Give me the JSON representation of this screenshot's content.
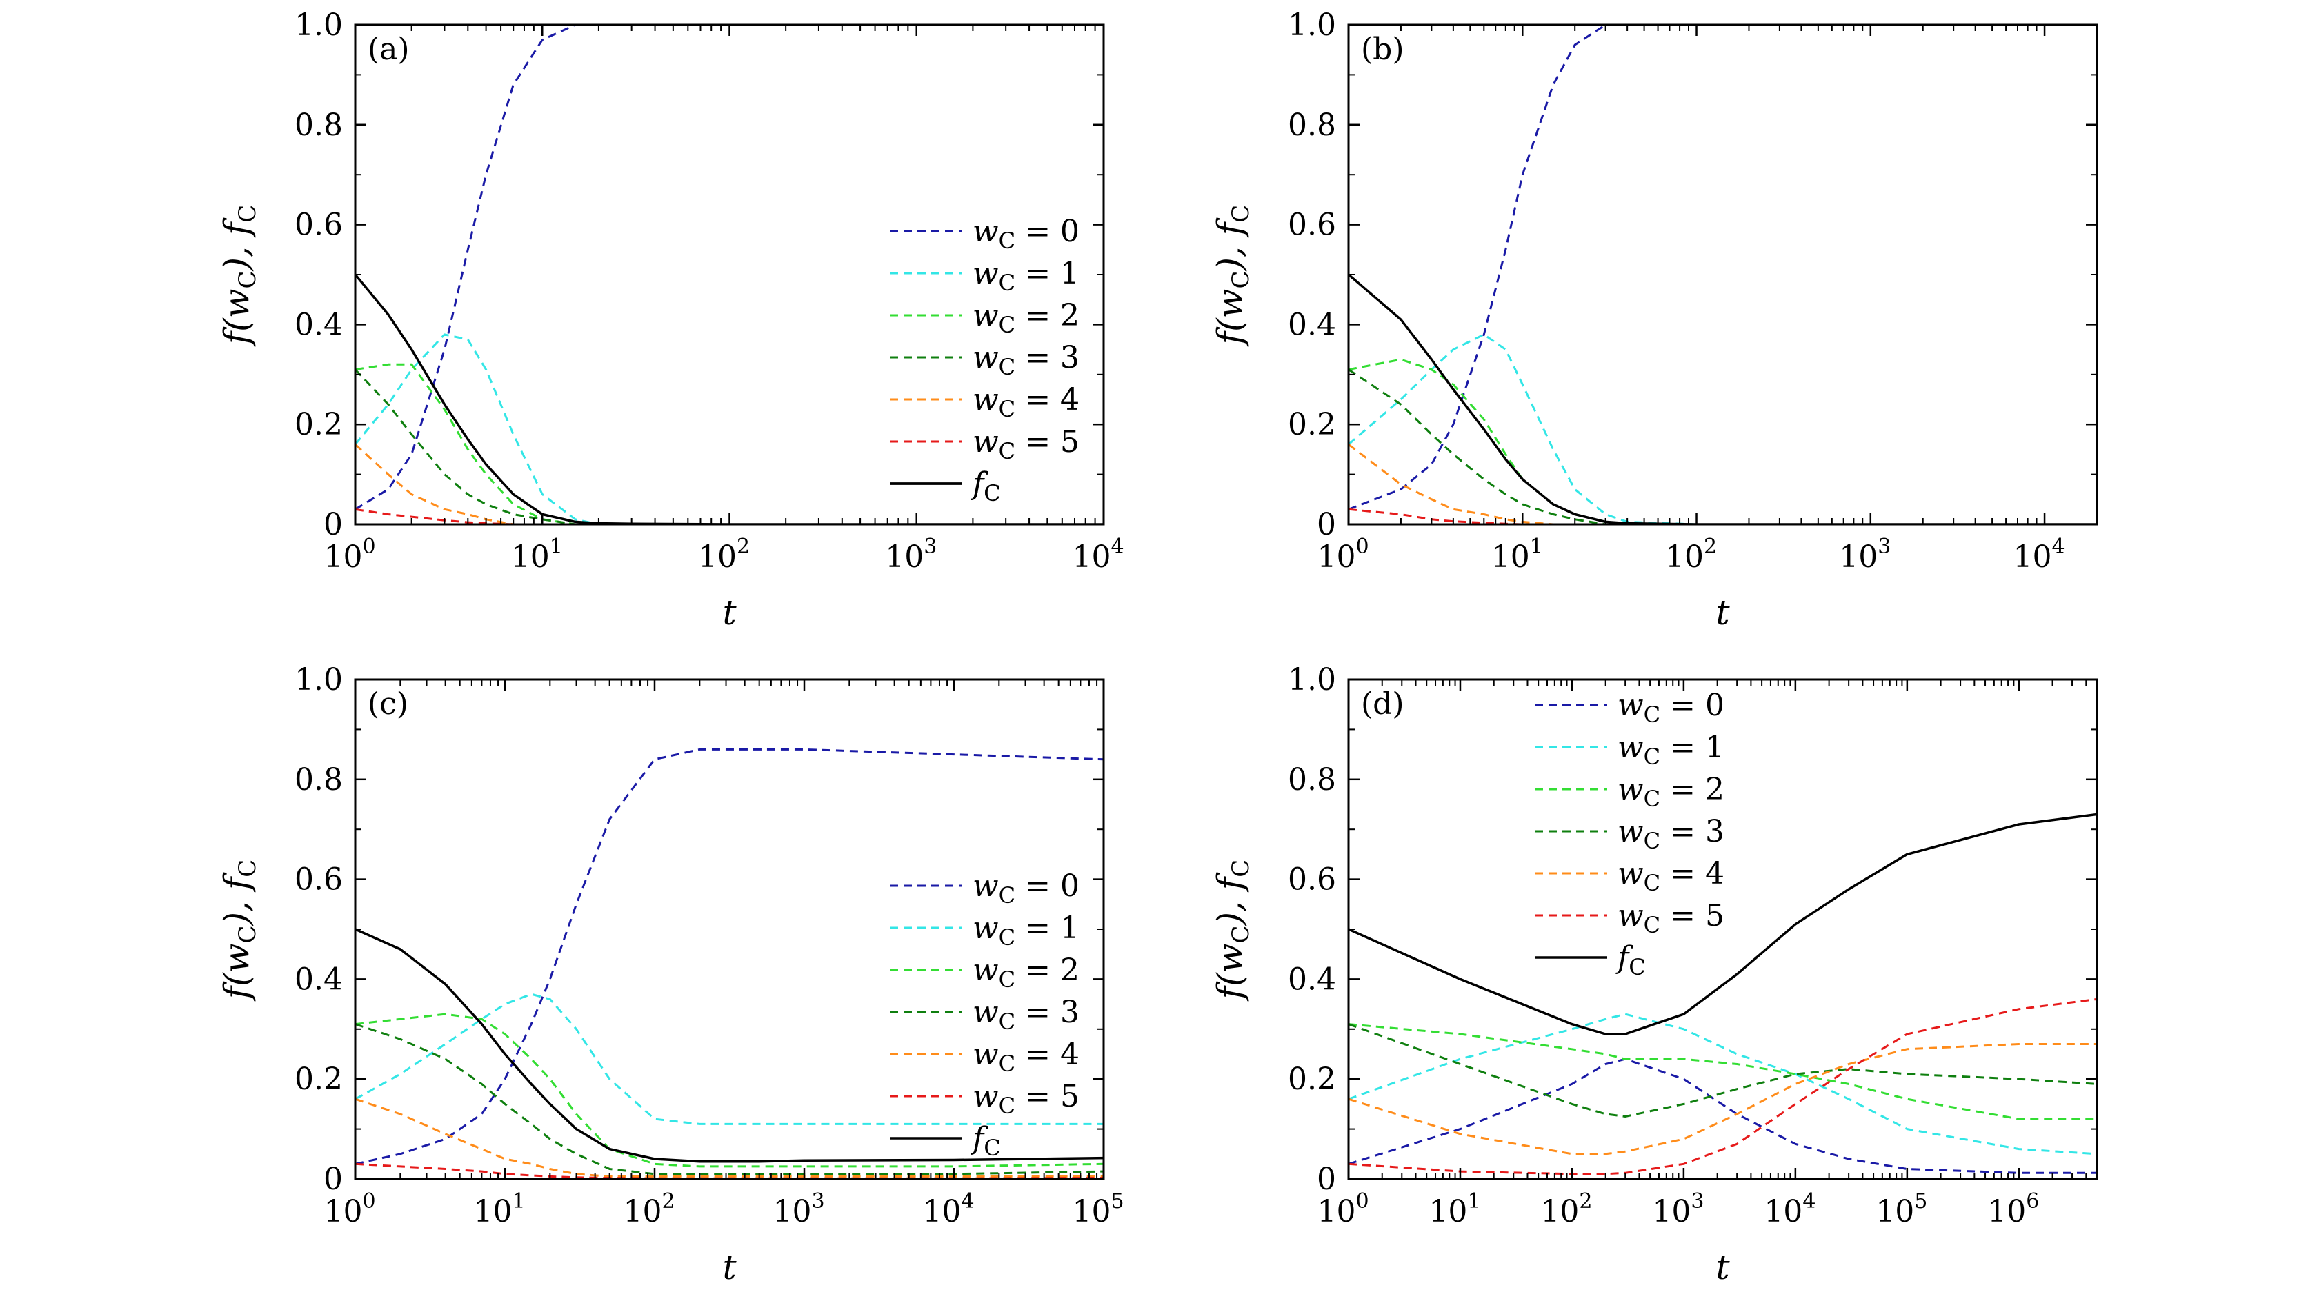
{
  "figure": {
    "y_axis_label": "f(w_C), f_C",
    "x_axis_label": "t"
  },
  "legend_labels": [
    "wC = 0",
    "wC = 1",
    "wC = 2",
    "wC = 3",
    "wC = 4",
    "wC = 5",
    "fC"
  ],
  "series_colors": [
    "#1a1aa6",
    "#33e6e6",
    "#33dd33",
    "#0f7f0f",
    "#ff8c1a",
    "#e61a1a",
    "#000000"
  ],
  "chart_data": [
    {
      "panel": "(a)",
      "type": "line",
      "x_scale": "log",
      "xlim": [
        1,
        10000
      ],
      "ylim": [
        0,
        1
      ],
      "x_ticks": [
        {
          "base": "10",
          "exp": "0"
        },
        {
          "base": "10",
          "exp": "1"
        },
        {
          "base": "10",
          "exp": "2"
        },
        {
          "base": "10",
          "exp": "3"
        },
        {
          "base": "10",
          "exp": "4"
        }
      ],
      "y_ticks": [
        "0",
        "0.2",
        "0.4",
        "0.6",
        "0.8",
        "1.0"
      ],
      "legend_position": "right",
      "x": [
        1,
        1.5,
        2,
        3,
        4,
        5,
        7,
        10,
        15,
        20,
        30,
        100,
        1000,
        10000
      ],
      "series": [
        {
          "name": "wC = 0",
          "values": [
            0.03,
            0.07,
            0.14,
            0.35,
            0.55,
            0.7,
            0.88,
            0.97,
            1.0,
            1.0,
            1.0,
            1.0,
            1.0,
            1.0
          ]
        },
        {
          "name": "wC = 1",
          "values": [
            0.16,
            0.24,
            0.31,
            0.38,
            0.37,
            0.31,
            0.18,
            0.06,
            0.01,
            0.0,
            0.0,
            0.0,
            0.0,
            0.0
          ]
        },
        {
          "name": "wC = 2",
          "values": [
            0.31,
            0.32,
            0.32,
            0.23,
            0.15,
            0.1,
            0.04,
            0.01,
            0.0,
            0.0,
            0.0,
            0.0,
            0.0,
            0.0
          ]
        },
        {
          "name": "wC = 3",
          "values": [
            0.31,
            0.24,
            0.18,
            0.1,
            0.06,
            0.04,
            0.02,
            0.01,
            0.0,
            0.0,
            0.0,
            0.0,
            0.0,
            0.0
          ]
        },
        {
          "name": "wC = 4",
          "values": [
            0.16,
            0.1,
            0.06,
            0.03,
            0.02,
            0.01,
            0.0,
            0.0,
            0.0,
            0.0,
            0.0,
            0.0,
            0.0,
            0.0
          ]
        },
        {
          "name": "wC = 5",
          "values": [
            0.03,
            0.02,
            0.015,
            0.008,
            0.004,
            0.002,
            0.0,
            0.0,
            0.0,
            0.0,
            0.0,
            0.0,
            0.0,
            0.0
          ]
        },
        {
          "name": "fC",
          "values": [
            0.5,
            0.42,
            0.35,
            0.24,
            0.17,
            0.12,
            0.06,
            0.02,
            0.005,
            0.002,
            0.001,
            0.0,
            0.0,
            0.0
          ]
        }
      ]
    },
    {
      "panel": "(b)",
      "type": "line",
      "x_scale": "log",
      "xlim": [
        1,
        20000
      ],
      "ylim": [
        0,
        1
      ],
      "x_ticks": [
        {
          "base": "10",
          "exp": "0"
        },
        {
          "base": "10",
          "exp": "1"
        },
        {
          "base": "10",
          "exp": "2"
        },
        {
          "base": "10",
          "exp": "3"
        },
        {
          "base": "10",
          "exp": "4"
        }
      ],
      "y_ticks": [
        "0",
        "0.2",
        "0.4",
        "0.6",
        "0.8",
        "1.0"
      ],
      "legend_position": "right",
      "x": [
        1,
        2,
        3,
        4,
        6,
        8,
        10,
        15,
        20,
        30,
        40,
        100,
        1000,
        20000
      ],
      "series": [
        {
          "name": "wC = 0",
          "values": [
            0.03,
            0.07,
            0.12,
            0.2,
            0.38,
            0.55,
            0.7,
            0.88,
            0.96,
            1.0,
            1.0,
            1.0,
            1.0,
            1.0
          ]
        },
        {
          "name": "wC = 1",
          "values": [
            0.16,
            0.25,
            0.31,
            0.35,
            0.38,
            0.35,
            0.28,
            0.15,
            0.07,
            0.02,
            0.005,
            0.0,
            0.0,
            0.0
          ]
        },
        {
          "name": "wC = 2",
          "values": [
            0.31,
            0.33,
            0.31,
            0.28,
            0.21,
            0.14,
            0.09,
            0.04,
            0.02,
            0.005,
            0.0,
            0.0,
            0.0,
            0.0
          ]
        },
        {
          "name": "wC = 3",
          "values": [
            0.31,
            0.24,
            0.18,
            0.14,
            0.09,
            0.06,
            0.04,
            0.02,
            0.01,
            0.0,
            0.0,
            0.0,
            0.0,
            0.0
          ]
        },
        {
          "name": "wC = 4",
          "values": [
            0.16,
            0.08,
            0.05,
            0.03,
            0.02,
            0.01,
            0.005,
            0.0,
            0.0,
            0.0,
            0.0,
            0.0,
            0.0,
            0.0
          ]
        },
        {
          "name": "wC = 5",
          "values": [
            0.03,
            0.02,
            0.01,
            0.006,
            0.003,
            0.001,
            0.0,
            0.0,
            0.0,
            0.0,
            0.0,
            0.0,
            0.0,
            0.0
          ]
        },
        {
          "name": "fC",
          "values": [
            0.5,
            0.41,
            0.33,
            0.27,
            0.19,
            0.13,
            0.09,
            0.04,
            0.02,
            0.005,
            0.002,
            0.0,
            0.0,
            0.0
          ]
        }
      ]
    },
    {
      "panel": "(c)",
      "type": "line",
      "x_scale": "log",
      "xlim": [
        1,
        100000
      ],
      "ylim": [
        0,
        1
      ],
      "x_ticks": [
        {
          "base": "10",
          "exp": "0"
        },
        {
          "base": "10",
          "exp": "1"
        },
        {
          "base": "10",
          "exp": "2"
        },
        {
          "base": "10",
          "exp": "3"
        },
        {
          "base": "10",
          "exp": "4"
        },
        {
          "base": "10",
          "exp": "5"
        }
      ],
      "y_ticks": [
        "0",
        "0.2",
        "0.4",
        "0.6",
        "0.8",
        "1.0"
      ],
      "legend_position": "right",
      "x": [
        1,
        2,
        4,
        7,
        10,
        15,
        20,
        30,
        50,
        100,
        200,
        500,
        1000,
        10000,
        100000
      ],
      "series": [
        {
          "name": "wC = 0",
          "values": [
            0.03,
            0.05,
            0.08,
            0.13,
            0.2,
            0.31,
            0.4,
            0.55,
            0.72,
            0.84,
            0.86,
            0.86,
            0.86,
            0.85,
            0.84
          ]
        },
        {
          "name": "wC = 1",
          "values": [
            0.16,
            0.21,
            0.27,
            0.32,
            0.35,
            0.37,
            0.36,
            0.3,
            0.2,
            0.12,
            0.11,
            0.11,
            0.11,
            0.11,
            0.11
          ]
        },
        {
          "name": "wC = 2",
          "values": [
            0.31,
            0.32,
            0.33,
            0.32,
            0.29,
            0.24,
            0.2,
            0.13,
            0.06,
            0.03,
            0.025,
            0.025,
            0.025,
            0.025,
            0.03
          ]
        },
        {
          "name": "wC = 3",
          "values": [
            0.31,
            0.28,
            0.24,
            0.19,
            0.15,
            0.11,
            0.08,
            0.05,
            0.02,
            0.01,
            0.01,
            0.01,
            0.01,
            0.01,
            0.015
          ]
        },
        {
          "name": "wC = 4",
          "values": [
            0.16,
            0.13,
            0.09,
            0.06,
            0.04,
            0.03,
            0.02,
            0.01,
            0.005,
            0.005,
            0.005,
            0.005,
            0.005,
            0.005,
            0.005
          ]
        },
        {
          "name": "wC = 5",
          "values": [
            0.03,
            0.025,
            0.02,
            0.015,
            0.01,
            0.007,
            0.005,
            0.003,
            0.002,
            0.001,
            0.001,
            0.001,
            0.001,
            0.001,
            0.002
          ]
        },
        {
          "name": "fC",
          "values": [
            0.5,
            0.46,
            0.39,
            0.31,
            0.25,
            0.19,
            0.15,
            0.1,
            0.06,
            0.04,
            0.035,
            0.035,
            0.037,
            0.038,
            0.042
          ]
        }
      ]
    },
    {
      "panel": "(d)",
      "type": "line",
      "x_scale": "log",
      "xlim": [
        1,
        5000000
      ],
      "ylim": [
        0,
        1
      ],
      "x_ticks": [
        {
          "base": "10",
          "exp": "0"
        },
        {
          "base": "10",
          "exp": "1"
        },
        {
          "base": "10",
          "exp": "2"
        },
        {
          "base": "10",
          "exp": "3"
        },
        {
          "base": "10",
          "exp": "4"
        },
        {
          "base": "10",
          "exp": "5"
        },
        {
          "base": "10",
          "exp": "6"
        }
      ],
      "y_ticks": [
        "0",
        "0.2",
        "0.4",
        "0.6",
        "0.8",
        "1.0"
      ],
      "legend_position": "top-left",
      "x": [
        1,
        10,
        100,
        200,
        300,
        1000,
        3000,
        10000,
        30000,
        100000,
        1000000,
        5000000
      ],
      "series": [
        {
          "name": "wC = 0",
          "values": [
            0.03,
            0.1,
            0.19,
            0.23,
            0.24,
            0.2,
            0.13,
            0.07,
            0.04,
            0.02,
            0.012,
            0.012
          ]
        },
        {
          "name": "wC = 1",
          "values": [
            0.16,
            0.24,
            0.3,
            0.32,
            0.33,
            0.3,
            0.25,
            0.21,
            0.16,
            0.1,
            0.06,
            0.05
          ]
        },
        {
          "name": "wC = 2",
          "values": [
            0.31,
            0.29,
            0.26,
            0.25,
            0.24,
            0.24,
            0.23,
            0.21,
            0.19,
            0.16,
            0.12,
            0.12
          ]
        },
        {
          "name": "wC = 3",
          "values": [
            0.31,
            0.23,
            0.15,
            0.13,
            0.125,
            0.15,
            0.18,
            0.21,
            0.22,
            0.21,
            0.2,
            0.19
          ]
        },
        {
          "name": "wC = 4",
          "values": [
            0.16,
            0.09,
            0.05,
            0.05,
            0.055,
            0.08,
            0.13,
            0.19,
            0.23,
            0.26,
            0.27,
            0.27
          ]
        },
        {
          "name": "wC = 5",
          "values": [
            0.03,
            0.015,
            0.01,
            0.01,
            0.012,
            0.03,
            0.07,
            0.15,
            0.22,
            0.29,
            0.34,
            0.36
          ]
        },
        {
          "name": "fC",
          "values": [
            0.5,
            0.4,
            0.31,
            0.29,
            0.29,
            0.33,
            0.41,
            0.51,
            0.58,
            0.65,
            0.71,
            0.73
          ]
        }
      ]
    }
  ]
}
